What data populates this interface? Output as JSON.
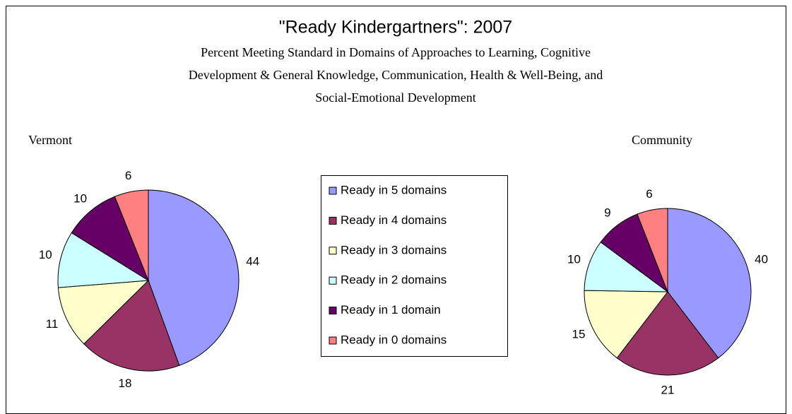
{
  "title": "\"Ready Kindergartners\": 2007",
  "subtitle": [
    "Percent Meeting Standard in Domains of Approaches to Learning, Cognitive",
    "Development & General Knowledge, Communication, Health & Well-Being, and",
    "Social-Emotional Development"
  ],
  "legend": {
    "labels": [
      "Ready in 5 domains",
      "Ready in 4 domains",
      "Ready in 3 domains",
      "Ready in 2 domains",
      "Ready in 1 domain",
      "Ready in 0 domains"
    ],
    "colors": [
      "#9999ff",
      "#993366",
      "#ffffcc",
      "#ccffff",
      "#660066",
      "#ff8080"
    ]
  },
  "chart_data": [
    {
      "type": "pie",
      "name": "Vermont",
      "values": [
        44,
        18,
        11,
        10,
        10,
        6
      ]
    },
    {
      "type": "pie",
      "name": "Community",
      "values": [
        40,
        21,
        15,
        10,
        9,
        6
      ]
    }
  ]
}
